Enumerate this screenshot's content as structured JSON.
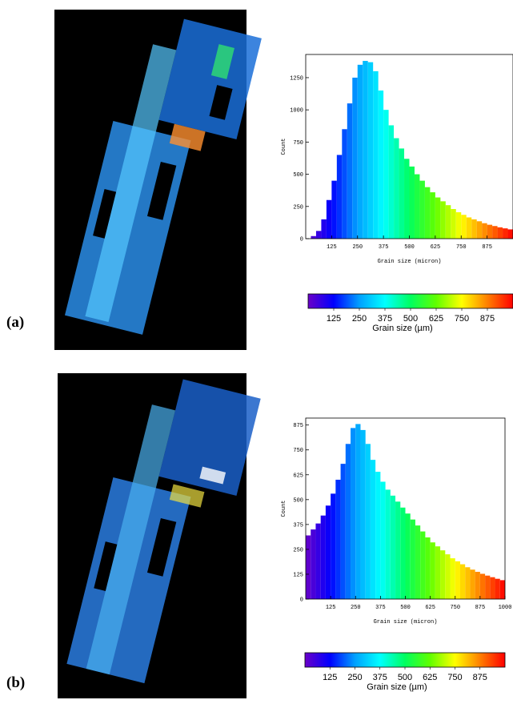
{
  "chart_data": [
    {
      "type": "histogram",
      "label": "(a)",
      "ylabel": "Count",
      "xlabel": "Grain size (micron)",
      "bins": [
        0,
        25,
        50,
        75,
        100,
        125,
        150,
        175,
        200,
        225,
        250,
        275,
        300,
        325,
        350,
        375,
        400,
        425,
        450,
        475,
        500,
        525,
        550,
        575,
        600,
        625,
        650,
        675,
        700,
        725,
        750,
        775,
        800,
        825,
        850,
        875,
        900,
        925,
        950,
        975,
        1000
      ],
      "values": [
        0,
        20,
        60,
        150,
        300,
        450,
        650,
        850,
        1050,
        1250,
        1350,
        1380,
        1370,
        1300,
        1150,
        1000,
        880,
        780,
        700,
        620,
        560,
        500,
        450,
        400,
        360,
        320,
        290,
        260,
        230,
        205,
        185,
        165,
        150,
        135,
        120,
        108,
        98,
        88,
        80,
        72
      ],
      "xlim": [
        0,
        1000
      ],
      "xticks": [
        125,
        250,
        375,
        500,
        625,
        750,
        875
      ],
      "ylim": [
        0,
        1430
      ],
      "yticks": [
        0,
        250,
        500,
        750,
        1000,
        1250
      ],
      "colormap": [
        "#6a00c8",
        "#0000ff",
        "#00a0ff",
        "#00ffff",
        "#00ff60",
        "#60ff00",
        "#ffff00",
        "#ff8000",
        "#ff0000"
      ],
      "colorbar": {
        "lim": [
          0,
          1000
        ],
        "ticks": [
          125,
          250,
          375,
          500,
          625,
          750,
          875
        ],
        "label": "Grain size (µm)"
      }
    },
    {
      "type": "histogram",
      "label": "(b)",
      "ylabel": "Count",
      "xlabel": "Grain size (micron)",
      "bins": [
        0,
        25,
        50,
        75,
        100,
        125,
        150,
        175,
        200,
        225,
        250,
        275,
        300,
        325,
        350,
        375,
        400,
        425,
        450,
        475,
        500,
        525,
        550,
        575,
        600,
        625,
        650,
        675,
        700,
        725,
        750,
        775,
        800,
        825,
        850,
        875,
        900,
        925,
        950,
        975,
        1000
      ],
      "values": [
        320,
        350,
        380,
        420,
        470,
        530,
        600,
        680,
        780,
        860,
        880,
        850,
        780,
        700,
        640,
        590,
        550,
        520,
        490,
        460,
        430,
        400,
        370,
        340,
        310,
        285,
        265,
        245,
        225,
        205,
        190,
        175,
        160,
        148,
        137,
        127,
        118,
        110,
        102,
        95
      ],
      "xlim": [
        0,
        1000
      ],
      "xticks": [
        125,
        250,
        375,
        500,
        625,
        750,
        875,
        1000
      ],
      "ylim": [
        0,
        910
      ],
      "yticks": [
        0,
        125,
        250,
        375,
        500,
        625,
        750,
        875
      ],
      "colormap": [
        "#6a00c8",
        "#0000ff",
        "#00a0ff",
        "#00ffff",
        "#00ff60",
        "#60ff00",
        "#ffff00",
        "#ff8000",
        "#ff0000"
      ],
      "colorbar": {
        "lim": [
          0,
          1000
        ],
        "ticks": [
          125,
          250,
          375,
          500,
          625,
          750,
          875
        ],
        "label": "Grain size (µm)"
      }
    }
  ]
}
